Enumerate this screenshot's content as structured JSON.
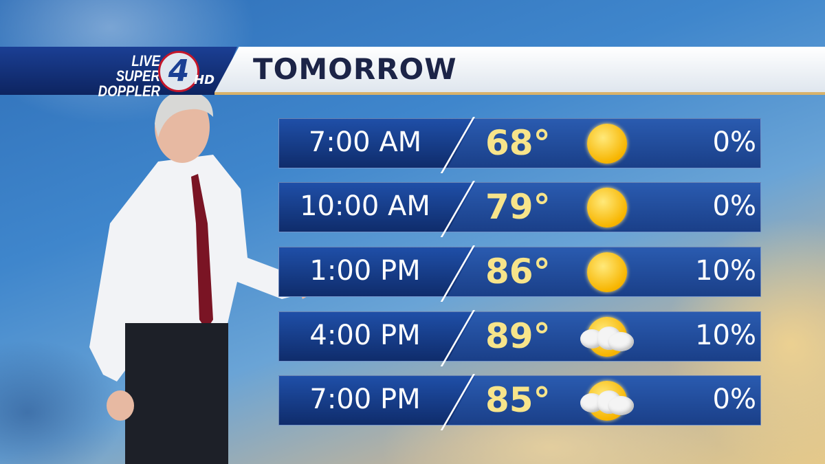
{
  "header": {
    "logo": {
      "line1": "LIVE SUPER",
      "line2": "DOPPLER",
      "channel": "4",
      "suffix": "HD"
    },
    "title": "TOMORROW"
  },
  "colors": {
    "temp": "#f7e48a",
    "bar": "#1f4fa8",
    "accent_red": "#c4162a",
    "gold_rule": "#d8b26a"
  },
  "forecast": [
    {
      "time": "7:00 AM",
      "temp": "68°",
      "icon": "sunny-icon",
      "precip": "0%"
    },
    {
      "time": "10:00 AM",
      "temp": "79°",
      "icon": "sunny-icon",
      "precip": "0%"
    },
    {
      "time": "1:00 PM",
      "temp": "86°",
      "icon": "sunny-icon",
      "precip": "10%"
    },
    {
      "time": "4:00 PM",
      "temp": "89°",
      "icon": "partly-cloudy-icon",
      "precip": "10%"
    },
    {
      "time": "7:00 PM",
      "temp": "85°",
      "icon": "partly-cloudy-icon",
      "precip": "0%"
    }
  ]
}
